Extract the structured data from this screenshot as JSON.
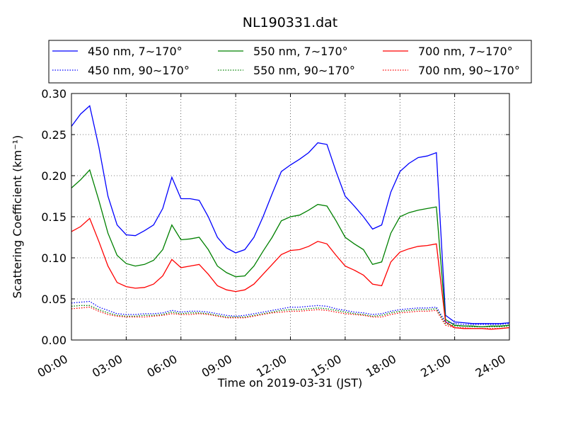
{
  "chart_data": {
    "type": "line",
    "title": "NL190331.dat",
    "xlabel": "Time on 2019-03-31 (JST)",
    "ylabel": "Scattering Coefficient (km⁻¹)",
    "xlim_hours": [
      0,
      24
    ],
    "ylim": [
      0,
      0.3
    ],
    "x_ticks": [
      {
        "value": 0,
        "label": "00:00"
      },
      {
        "value": 3,
        "label": "03:00"
      },
      {
        "value": 6,
        "label": "06:00"
      },
      {
        "value": 9,
        "label": "09:00"
      },
      {
        "value": 12,
        "label": "12:00"
      },
      {
        "value": 15,
        "label": "15:00"
      },
      {
        "value": 18,
        "label": "18:00"
      },
      {
        "value": 21,
        "label": "21:00"
      },
      {
        "value": 24,
        "label": "24:00"
      }
    ],
    "y_ticks": [
      {
        "value": 0.0,
        "label": "0.00"
      },
      {
        "value": 0.05,
        "label": "0.05"
      },
      {
        "value": 0.1,
        "label": "0.10"
      },
      {
        "value": 0.15,
        "label": "0.15"
      },
      {
        "value": 0.2,
        "label": "0.20"
      },
      {
        "value": 0.25,
        "label": "0.25"
      },
      {
        "value": 0.3,
        "label": "0.30"
      }
    ],
    "grid": true,
    "legend_position": "top, above plot",
    "x_hours": [
      0,
      0.5,
      1,
      1.5,
      2,
      2.5,
      3,
      3.5,
      4,
      4.5,
      5,
      5.5,
      6,
      6.5,
      7,
      7.5,
      8,
      8.5,
      9,
      9.5,
      10,
      10.5,
      11,
      11.5,
      12,
      12.5,
      13,
      13.5,
      14,
      14.5,
      15,
      15.5,
      16,
      16.5,
      17,
      17.5,
      18,
      18.5,
      19,
      19.5,
      20,
      20.5,
      21,
      21.5,
      22,
      22.5,
      23,
      23.5,
      24
    ],
    "series": [
      {
        "name": "450 nm, 7∼170°",
        "color": "#0000ff",
        "style": "solid",
        "values": [
          0.26,
          0.275,
          0.285,
          0.235,
          0.175,
          0.14,
          0.128,
          0.127,
          0.133,
          0.14,
          0.16,
          0.198,
          0.172,
          0.172,
          0.17,
          0.15,
          0.125,
          0.112,
          0.106,
          0.11,
          0.125,
          0.15,
          0.178,
          0.205,
          0.213,
          0.22,
          0.228,
          0.24,
          0.238,
          0.205,
          0.175,
          0.163,
          0.15,
          0.135,
          0.14,
          0.18,
          0.205,
          0.215,
          0.222,
          0.224,
          0.228,
          0.03,
          0.022,
          0.021,
          0.02,
          0.02,
          0.02,
          0.02,
          0.021
        ]
      },
      {
        "name": "550 nm, 7∼170°",
        "color": "#008000",
        "style": "solid",
        "values": [
          0.185,
          0.195,
          0.207,
          0.17,
          0.13,
          0.103,
          0.093,
          0.09,
          0.092,
          0.097,
          0.11,
          0.14,
          0.122,
          0.123,
          0.125,
          0.11,
          0.09,
          0.082,
          0.077,
          0.078,
          0.09,
          0.108,
          0.125,
          0.145,
          0.15,
          0.152,
          0.158,
          0.165,
          0.163,
          0.145,
          0.125,
          0.117,
          0.11,
          0.092,
          0.095,
          0.13,
          0.15,
          0.155,
          0.158,
          0.16,
          0.162,
          0.025,
          0.018,
          0.017,
          0.017,
          0.016,
          0.017,
          0.017,
          0.018
        ]
      },
      {
        "name": "700 nm, 7∼170°",
        "color": "#ff0000",
        "style": "solid",
        "values": [
          0.132,
          0.138,
          0.148,
          0.12,
          0.09,
          0.07,
          0.065,
          0.063,
          0.064,
          0.068,
          0.078,
          0.098,
          0.088,
          0.09,
          0.092,
          0.08,
          0.066,
          0.061,
          0.059,
          0.061,
          0.068,
          0.08,
          0.092,
          0.104,
          0.109,
          0.11,
          0.114,
          0.12,
          0.117,
          0.103,
          0.09,
          0.085,
          0.079,
          0.068,
          0.066,
          0.095,
          0.107,
          0.111,
          0.114,
          0.115,
          0.117,
          0.022,
          0.015,
          0.014,
          0.014,
          0.014,
          0.013,
          0.014,
          0.015
        ]
      },
      {
        "name": "450 nm, 90∼170°",
        "color": "#0000ff",
        "style": "dotted",
        "values": [
          0.045,
          0.046,
          0.047,
          0.04,
          0.036,
          0.032,
          0.031,
          0.031,
          0.032,
          0.032,
          0.033,
          0.036,
          0.034,
          0.035,
          0.035,
          0.034,
          0.032,
          0.03,
          0.029,
          0.03,
          0.032,
          0.034,
          0.036,
          0.038,
          0.04,
          0.04,
          0.041,
          0.042,
          0.041,
          0.038,
          0.036,
          0.034,
          0.033,
          0.031,
          0.032,
          0.035,
          0.037,
          0.038,
          0.039,
          0.039,
          0.04,
          0.022,
          0.02,
          0.019,
          0.019,
          0.019,
          0.019,
          0.019,
          0.02
        ]
      },
      {
        "name": "550 nm, 90∼170°",
        "color": "#008000",
        "style": "dotted",
        "values": [
          0.041,
          0.042,
          0.042,
          0.037,
          0.033,
          0.03,
          0.029,
          0.029,
          0.03,
          0.03,
          0.031,
          0.034,
          0.032,
          0.033,
          0.033,
          0.032,
          0.03,
          0.028,
          0.028,
          0.028,
          0.03,
          0.032,
          0.034,
          0.036,
          0.037,
          0.037,
          0.038,
          0.039,
          0.038,
          0.036,
          0.034,
          0.032,
          0.031,
          0.029,
          0.03,
          0.033,
          0.035,
          0.036,
          0.037,
          0.037,
          0.038,
          0.02,
          0.017,
          0.017,
          0.016,
          0.016,
          0.016,
          0.016,
          0.017
        ]
      },
      {
        "name": "700 nm, 90∼170°",
        "color": "#ff0000",
        "style": "dotted",
        "values": [
          0.038,
          0.039,
          0.04,
          0.035,
          0.031,
          0.029,
          0.028,
          0.028,
          0.028,
          0.029,
          0.03,
          0.032,
          0.031,
          0.031,
          0.032,
          0.031,
          0.029,
          0.027,
          0.027,
          0.027,
          0.029,
          0.031,
          0.033,
          0.034,
          0.035,
          0.035,
          0.036,
          0.037,
          0.036,
          0.034,
          0.032,
          0.031,
          0.03,
          0.028,
          0.028,
          0.031,
          0.033,
          0.034,
          0.035,
          0.035,
          0.036,
          0.018,
          0.015,
          0.015,
          0.014,
          0.014,
          0.014,
          0.014,
          0.015
        ]
      }
    ]
  }
}
